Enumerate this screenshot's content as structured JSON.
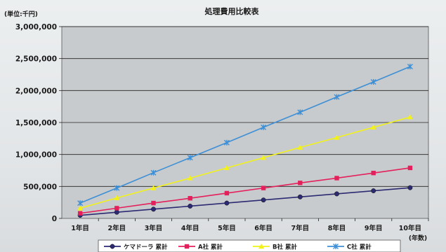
{
  "chart_data": {
    "type": "line",
    "title": "処理費用比較表",
    "unit_label": "(単位:千円)",
    "xlabel": "(年数)",
    "categories": [
      "1年目",
      "2年目",
      "3年目",
      "4年目",
      "5年目",
      "6年目",
      "7年目",
      "8年目",
      "9年目",
      "10年目"
    ],
    "ylim": [
      0,
      3000000
    ],
    "yticks": [
      0,
      500000,
      1000000,
      1500000,
      2000000,
      2500000,
      3000000
    ],
    "ytick_labels": [
      "0",
      "500,000",
      "1,000,000",
      "1,500,000",
      "2,000,000",
      "2,500,000",
      "3,000,000"
    ],
    "grid": true,
    "legend_position": "bottom",
    "series": [
      {
        "name": "ケマドーラ 累計",
        "color": "#2b2a72",
        "marker": "circle",
        "values": [
          48000,
          96000,
          144000,
          192000,
          240000,
          288000,
          336000,
          384000,
          432000,
          480000
        ]
      },
      {
        "name": "A社 累計",
        "color": "#e4205c",
        "marker": "square",
        "values": [
          80000,
          160000,
          240000,
          315000,
          395000,
          475000,
          555000,
          630000,
          710000,
          790000
        ]
      },
      {
        "name": "B社 累計",
        "color": "#f2f21a",
        "marker": "triangle",
        "values": [
          160000,
          320000,
          475000,
          630000,
          790000,
          950000,
          1110000,
          1265000,
          1425000,
          1585000
        ]
      },
      {
        "name": "C社 累計",
        "color": "#3d8fd6",
        "marker": "x",
        "values": [
          240000,
          475000,
          715000,
          950000,
          1185000,
          1425000,
          1660000,
          1900000,
          2135000,
          2375000
        ]
      }
    ]
  }
}
